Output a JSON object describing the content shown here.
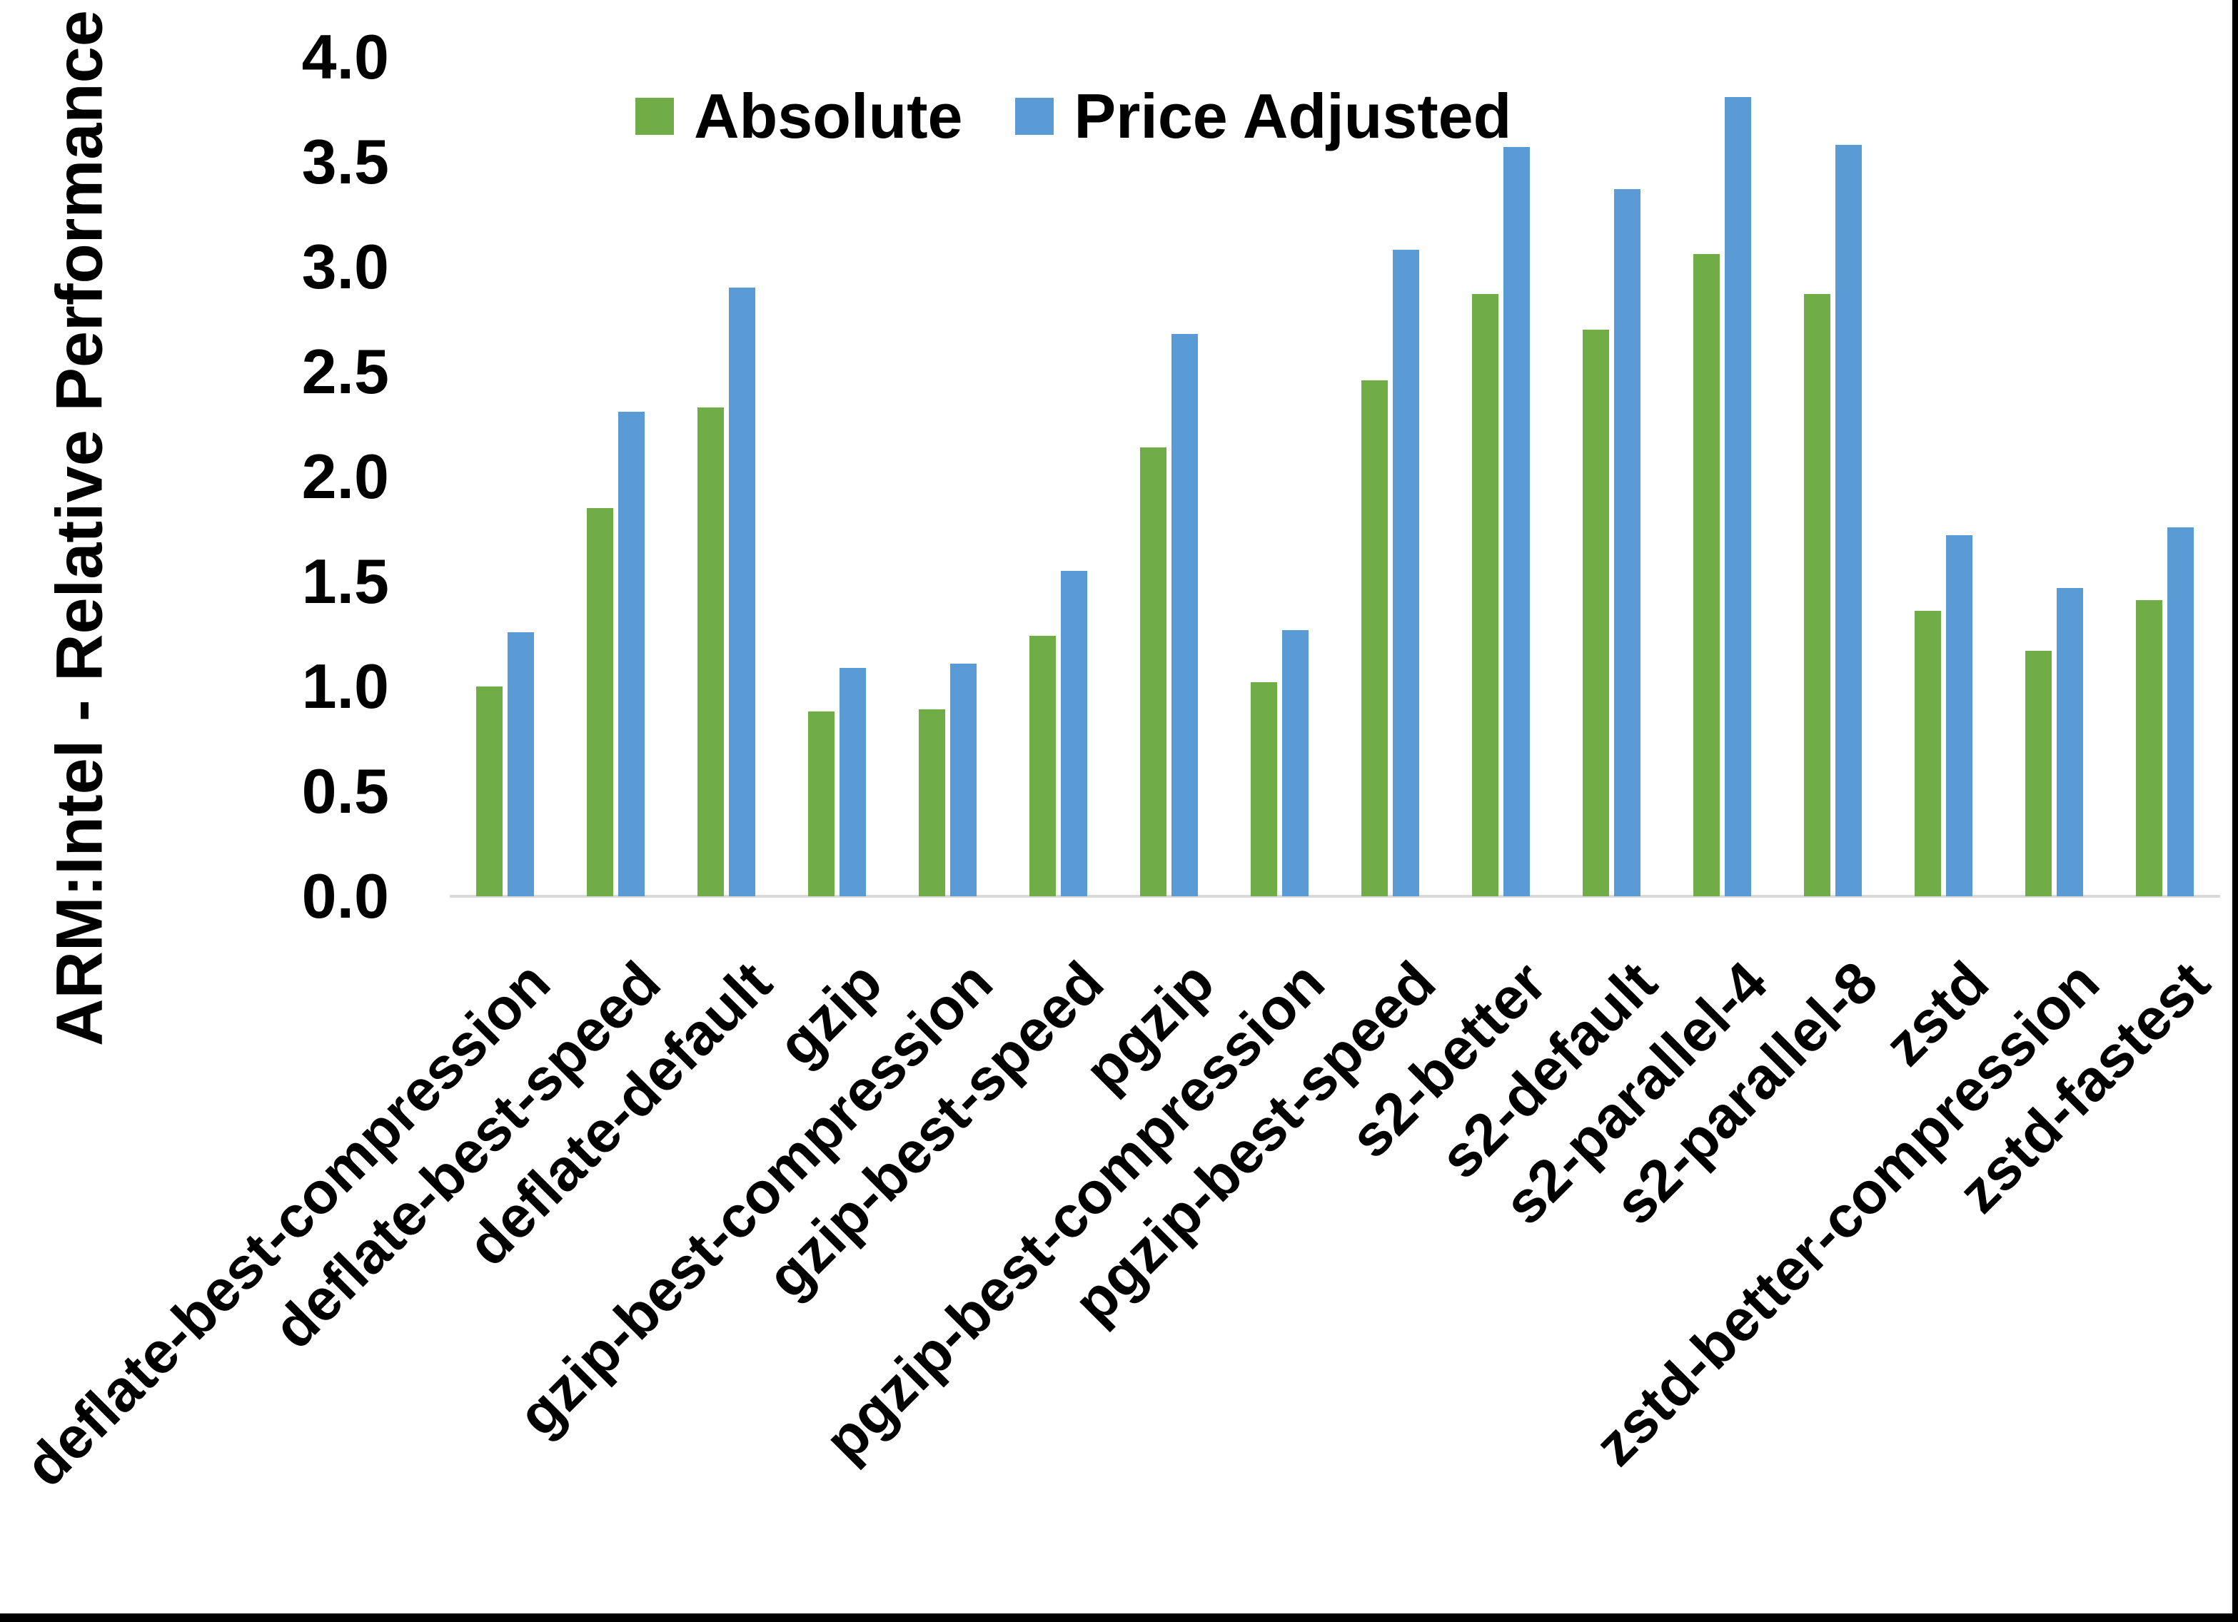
{
  "figure": {
    "background_color": "#ffffff",
    "border_color": "#000000",
    "axis_line_color": "#d9d9d9",
    "text_color": "#000000"
  },
  "chart_data": {
    "type": "bar",
    "title": "",
    "xlabel": "",
    "ylabel": "ARM:Intel - Relative Performance",
    "ylim": [
      0.0,
      4.0
    ],
    "ytick_step": 0.5,
    "ytick_labels": [
      "0.0",
      "0.5",
      "1.0",
      "1.5",
      "2.0",
      "2.5",
      "3.0",
      "3.5",
      "4.0"
    ],
    "grid": false,
    "legend_position": "top-center",
    "categories": [
      "deflate-best-compression",
      "deflate-best-speed",
      "deflate-default",
      "gzip",
      "gzip-best-compression",
      "gzip-best-speed",
      "pgzip",
      "pgzip-best-compression",
      "pgzip-best-speed",
      "s2-better",
      "s2-default",
      "s2-parallel-4",
      "s2-parallel-8",
      "zstd",
      "zstd-better-compression",
      "zstd-fastest"
    ],
    "series": [
      {
        "name": "Absolute",
        "color": "#70AD47",
        "values": [
          1.0,
          1.85,
          2.33,
          0.88,
          0.89,
          1.24,
          2.14,
          1.02,
          2.46,
          2.87,
          2.7,
          3.06,
          2.87,
          1.36,
          1.17,
          1.41
        ]
      },
      {
        "name": "Price Adjusted",
        "color": "#5B9BD5",
        "values": [
          1.26,
          2.31,
          2.9,
          1.09,
          1.11,
          1.55,
          2.68,
          1.27,
          3.08,
          3.57,
          3.37,
          3.81,
          3.58,
          1.72,
          1.47,
          1.76
        ]
      }
    ]
  }
}
